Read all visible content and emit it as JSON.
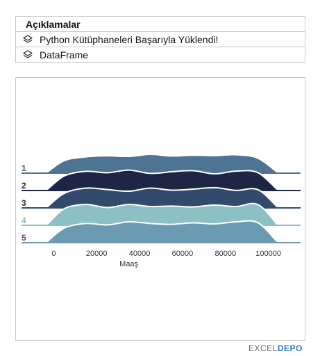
{
  "panel": {
    "title": "Açıklamalar",
    "items": [
      {
        "label": "Python Kütüphaneleri Başarıyla Yüklendi!",
        "icon": "layers-icon"
      },
      {
        "label": "DataFrame",
        "icon": "layers-icon"
      }
    ]
  },
  "chart_data": {
    "type": "area",
    "xlabel": "Maaş",
    "xlim": [
      -15000,
      115000
    ],
    "xticks": [
      0,
      20000,
      40000,
      60000,
      80000,
      100000
    ],
    "xtick_labels": [
      "0",
      "20000",
      "40000",
      "60000",
      "80000",
      "100000"
    ],
    "series": [
      {
        "name": "1",
        "color": "#4f7393",
        "label_color": "#555555",
        "x": [
          -3000,
          5000,
          15000,
          25000,
          35000,
          45000,
          55000,
          65000,
          75000,
          85000,
          95000,
          104000
        ],
        "values": [
          0.05,
          0.6,
          0.78,
          0.83,
          0.8,
          0.9,
          0.82,
          0.86,
          0.84,
          0.88,
          0.72,
          0.06
        ]
      },
      {
        "name": "2",
        "color": "#1f2645",
        "label_color": "#1f2645",
        "x": [
          -3000,
          5000,
          15000,
          25000,
          35000,
          45000,
          55000,
          65000,
          75000,
          85000,
          95000,
          104000
        ],
        "values": [
          0.05,
          0.7,
          0.92,
          0.85,
          0.98,
          0.82,
          0.9,
          0.95,
          0.8,
          0.93,
          0.86,
          0.06
        ]
      },
      {
        "name": "3",
        "color": "#324b6c",
        "label_color": "#333333",
        "x": [
          -3000,
          5000,
          15000,
          25000,
          35000,
          45000,
          55000,
          65000,
          75000,
          85000,
          95000,
          104000
        ],
        "values": [
          0.05,
          0.7,
          0.95,
          0.88,
          0.8,
          0.95,
          0.85,
          0.9,
          0.97,
          0.84,
          0.88,
          0.06
        ]
      },
      {
        "name": "4",
        "color": "#8cc0c5",
        "label_color": "#8cbcc4",
        "x": [
          -3000,
          5000,
          15000,
          25000,
          35000,
          45000,
          55000,
          65000,
          75000,
          85000,
          95000,
          104000
        ],
        "values": [
          0.05,
          0.8,
          1.0,
          0.85,
          1.0,
          0.9,
          0.92,
          0.88,
          0.97,
          0.9,
          1.0,
          0.06
        ]
      },
      {
        "name": "5",
        "color": "#6a9bb2",
        "label_color": "#555555",
        "x": [
          -3000,
          5000,
          15000,
          25000,
          35000,
          45000,
          55000,
          65000,
          75000,
          85000,
          95000,
          104000
        ],
        "values": [
          0.05,
          0.7,
          0.92,
          0.85,
          1.0,
          0.92,
          0.88,
          0.95,
          0.9,
          1.0,
          0.96,
          0.06
        ]
      }
    ]
  },
  "watermark": {
    "prefix": "EXCEL",
    "suffix": "DEPO"
  }
}
